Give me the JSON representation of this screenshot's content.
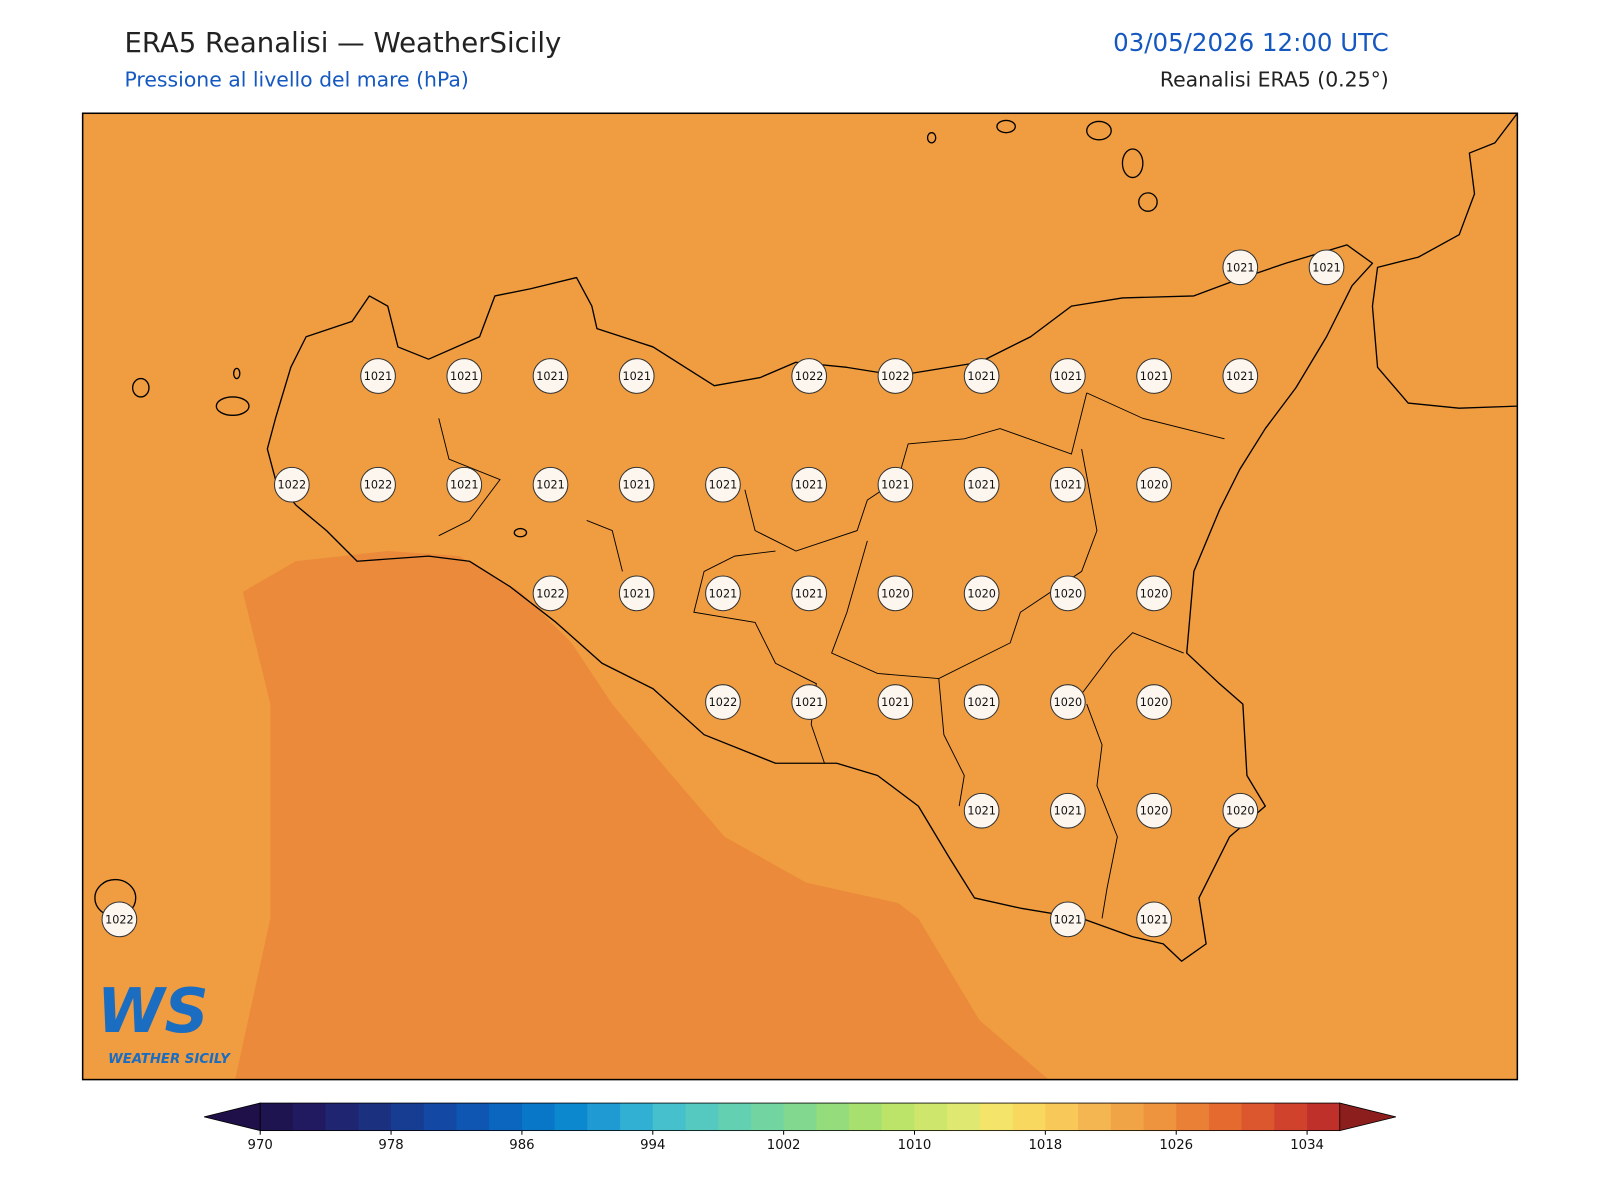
{
  "header": {
    "title": "ERA5 Reanalisi — WeatherSicily",
    "subtitle": "Pressione al livello del mare (hPa)",
    "datetime": "03/05/2026 12:00 UTC",
    "source": "Reanalisi ERA5 (0.25°)"
  },
  "stations": {
    "rows": [
      [
        null,
        null,
        null,
        null,
        null,
        null,
        null,
        null,
        null,
        null,
        null,
        null,
        null,
        1021,
        1021
      ],
      [
        null,
        null,
        null,
        1021,
        1021,
        1021,
        1021,
        null,
        1022,
        1022,
        1021,
        1021,
        1021,
        1021,
        null
      ],
      [
        null,
        null,
        1022,
        1022,
        1021,
        1021,
        1021,
        1021,
        1021,
        1021,
        1021,
        1021,
        1020,
        null,
        null
      ],
      [
        null,
        null,
        null,
        null,
        null,
        1022,
        1021,
        1021,
        1021,
        1020,
        1020,
        1020,
        1020,
        null,
        null
      ],
      [
        null,
        null,
        null,
        null,
        null,
        null,
        null,
        1022,
        1021,
        1021,
        1021,
        1020,
        1020,
        null,
        null
      ],
      [
        null,
        null,
        null,
        null,
        null,
        null,
        null,
        null,
        null,
        null,
        1021,
        1021,
        1020,
        1020,
        null
      ],
      [
        1022,
        null,
        null,
        null,
        null,
        null,
        null,
        null,
        null,
        null,
        null,
        1021,
        1021,
        null,
        null
      ]
    ]
  },
  "colorbar": {
    "lim": [
      970,
      1036
    ],
    "ticks": [
      970,
      978,
      986,
      994,
      1002,
      1010,
      1018,
      1026,
      1034
    ],
    "colors": [
      "#1e1450",
      "#221a60",
      "#1f2570",
      "#1b3180",
      "#173d92",
      "#1349a4",
      "#0f56b2",
      "#0b66c0",
      "#0877c8",
      "#0c88cf",
      "#1f9ad2",
      "#32b0d3",
      "#45c0cc",
      "#55c8c0",
      "#64d0b2",
      "#72d4a0",
      "#82d88e",
      "#95dc7c",
      "#a8e070",
      "#bce468",
      "#cfe66c",
      "#dfe870",
      "#f4e46a",
      "#f9d860",
      "#f8c858",
      "#f4b650",
      "#f0a446",
      "#ee943e",
      "#ea8036",
      "#e46a30",
      "#dc562e",
      "#d0422c",
      "#c0302a"
    ],
    "under_color": "#20104a",
    "over_color": "#8c1e1e"
  },
  "logo": {
    "mark": "WS",
    "name": "WEATHER SICILY"
  }
}
